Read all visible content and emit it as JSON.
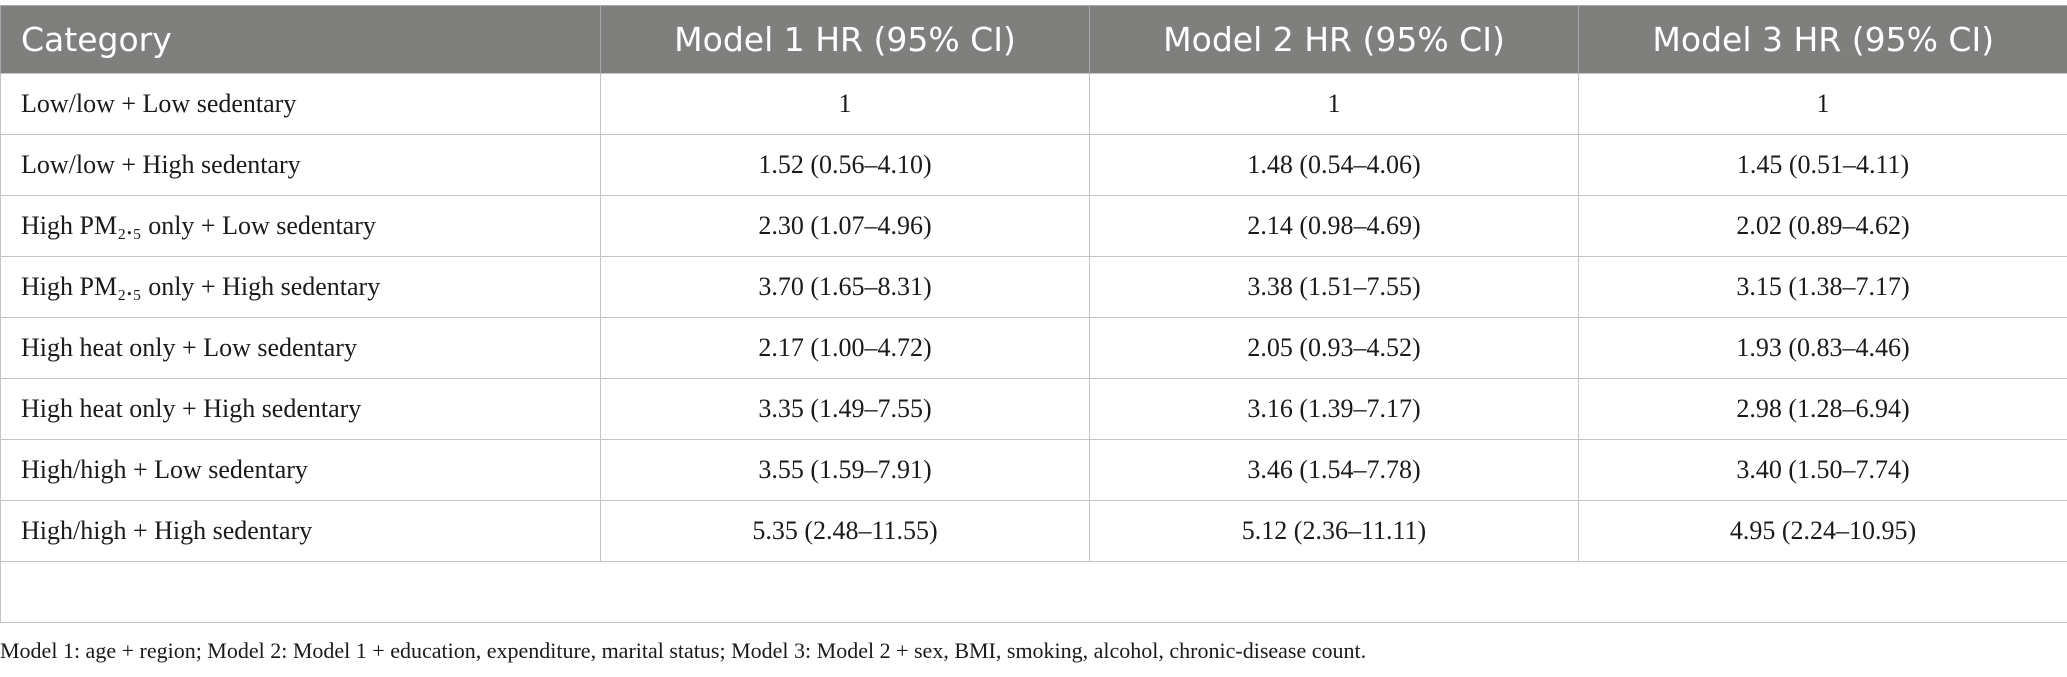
{
  "table": {
    "headers": [
      "Category",
      "Model 1 HR (95% CI)",
      "Model 2 HR (95% CI)",
      "Model 3 HR (95% CI)"
    ],
    "rows": [
      [
        "Low/low + Low sedentary",
        "1",
        "1",
        "1"
      ],
      [
        "Low/low + High sedentary",
        "1.52 (0.56–4.10)",
        "1.48 (0.54–4.06)",
        "1.45 (0.51–4.11)"
      ],
      [
        "High PM₂.₅ only + Low sedentary",
        "2.30 (1.07–4.96)",
        "2.14 (0.98–4.69)",
        "2.02 (0.89–4.62)"
      ],
      [
        "High PM₂.₅ only + High sedentary",
        "3.70 (1.65–8.31)",
        "3.38 (1.51–7.55)",
        "3.15 (1.38–7.17)"
      ],
      [
        "High heat only + Low sedentary",
        "2.17 (1.00–4.72)",
        "2.05 (0.93–4.52)",
        "1.93 (0.83–4.46)"
      ],
      [
        "High heat only + High sedentary",
        "3.35 (1.49–7.55)",
        "3.16 (1.39–7.17)",
        "2.98 (1.28–6.94)"
      ],
      [
        "High/high + Low sedentary",
        "3.55 (1.59–7.91)",
        "3.46 (1.54–7.78)",
        "3.40 (1.50–7.74)"
      ],
      [
        "High/high + High sedentary",
        "5.35 (2.48–11.55)",
        "5.12 (2.36–11.11)",
        "4.95 (2.24–10.95)"
      ]
    ]
  },
  "footnote": "Model 1: age + region; Model 2: Model 1 + education, expenditure, marital status; Model 3: Model 2 + sex, BMI, smoking, alcohol, chronic-disease count.",
  "colors": {
    "header_bg": "#7f7f7e",
    "header_text": "#ffffff",
    "grid_line": "#c4c4c4"
  }
}
